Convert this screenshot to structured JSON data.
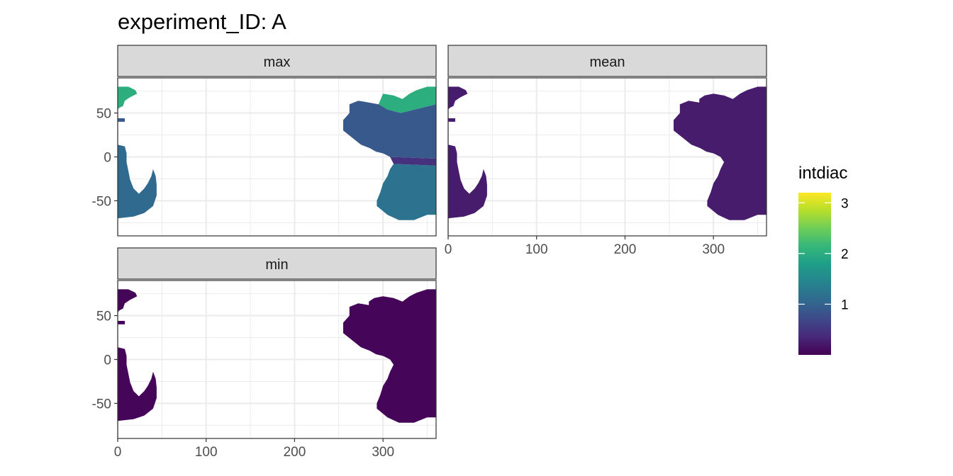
{
  "chart_data": {
    "type": "heatmap",
    "title": "experiment_ID: A",
    "xlabel": "",
    "ylabel": "",
    "x_ticks": [
      0,
      100,
      200,
      300
    ],
    "y_ticks": [
      50,
      0,
      -50
    ],
    "xlim": [
      0,
      360
    ],
    "ylim": [
      -90,
      90
    ],
    "grid": true,
    "panels": [
      {
        "label": "max",
        "ocean": [
          {
            "region": "labrador-greenland-arctic",
            "value": 2.0
          },
          {
            "region": "north-atlantic",
            "value": 0.9
          },
          {
            "region": "south-atlantic",
            "value": 1.2
          },
          {
            "region": "indian-ocean-west",
            "value": 1.1
          },
          {
            "region": "east-atlantic-band",
            "value": 0.45
          }
        ]
      },
      {
        "label": "mean",
        "ocean": [
          {
            "region": "all-ocean",
            "value": 0.25
          }
        ]
      },
      {
        "label": "min",
        "ocean": [
          {
            "region": "all-ocean",
            "value": 0.05
          }
        ]
      }
    ],
    "legend": {
      "title": "intdiac",
      "ticks": [
        1,
        2,
        3
      ],
      "range": [
        0,
        3.2
      ],
      "colormap": "viridis",
      "placement": "right"
    }
  },
  "colors": {
    "strip_bg": "#d9d9d9",
    "grid": "#ebebeb",
    "panel_border": "#333333",
    "viridis": [
      "#440154",
      "#482878",
      "#3e4989",
      "#31688e",
      "#26828e",
      "#1f9e89",
      "#35b779",
      "#6ece58",
      "#b5de2b",
      "#fde725"
    ]
  }
}
